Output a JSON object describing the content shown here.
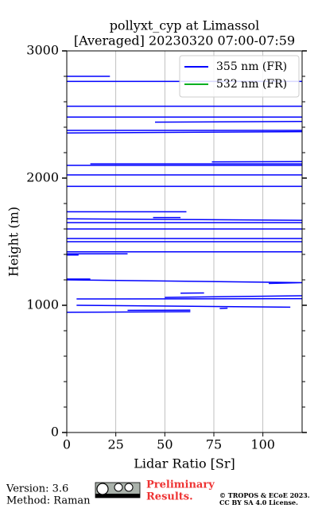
{
  "chart_data": {
    "type": "line",
    "title": [
      "pollyxt_cyp at Limassol",
      "[Averaged] 20230320 07:00-07:59"
    ],
    "x_label": "Lidar Ratio [Sr]",
    "y_label": "Height (m)",
    "xlim": [
      0,
      120
    ],
    "ylim": [
      0,
      3000
    ],
    "xticks": [
      0,
      25,
      50,
      75,
      100
    ],
    "yticks": [
      0,
      1000,
      2000,
      3000
    ],
    "yminorticks": [
      200,
      400,
      600,
      800,
      1200,
      1400,
      1600,
      1800,
      2200,
      2400,
      2600,
      2800
    ],
    "grid": "x",
    "legend": "upper right",
    "series": [
      {
        "name": "355 nm (FR)",
        "color": "#0000ff",
        "values": [
          0,
          63,
          null,
          31,
          63,
          null,
          78,
          82,
          null,
          5,
          114,
          null,
          5,
          120,
          null,
          50,
          120,
          null,
          58,
          70,
          null,
          103,
          120,
          null,
          0,
          120,
          null,
          0,
          12,
          null,
          0,
          6,
          null,
          0,
          31,
          null,
          0,
          120,
          null,
          0,
          120,
          null,
          0,
          120,
          null,
          0,
          120,
          null,
          0,
          120,
          null,
          0,
          120,
          null,
          44,
          58,
          null,
          0,
          61,
          null,
          0,
          120,
          null,
          0,
          120,
          null,
          0,
          120,
          null,
          12,
          120,
          null,
          74,
          120,
          null,
          0,
          120,
          null,
          0,
          120,
          null,
          45,
          120,
          null,
          0,
          120,
          null,
          0,
          120,
          null,
          0,
          120,
          null,
          0,
          22
        ],
        "heights": [
          945,
          950,
          null,
          960,
          962,
          null,
          975,
          977,
          null,
          1000,
          985,
          null,
          1050,
          1052,
          null,
          1062,
          1075,
          null,
          1095,
          1097,
          null,
          1172,
          1178,
          null,
          1200,
          1178,
          null,
          1206,
          1206,
          null,
          1395,
          1395,
          null,
          1405,
          1405,
          null,
          1420,
          1420,
          null,
          1500,
          1500,
          null,
          1525,
          1525,
          null,
          1600,
          1600,
          null,
          1650,
          1650,
          null,
          1680,
          1668,
          null,
          1690,
          1690,
          null,
          1735,
          1735,
          null,
          1935,
          1935,
          null,
          2025,
          2025,
          null,
          2100,
          2100,
          null,
          2112,
          2112,
          null,
          2127,
          2130,
          null,
          2355,
          2365,
          null,
          2375,
          2375,
          null,
          2440,
          2445,
          null,
          2480,
          2480,
          null,
          2565,
          2565,
          null,
          2760,
          2760,
          null,
          2800,
          2800
        ]
      },
      {
        "name": "532 nm (FR)",
        "color": "#00b020",
        "values": [],
        "heights": []
      }
    ]
  },
  "footer": {
    "version": "Version: 3.6",
    "method": "Method: Raman",
    "preliminary": [
      "Preliminary",
      "Results."
    ],
    "copyright": [
      "© TROPOS & ECoE 2023.",
      "CC BY SA 4.0 License."
    ]
  }
}
